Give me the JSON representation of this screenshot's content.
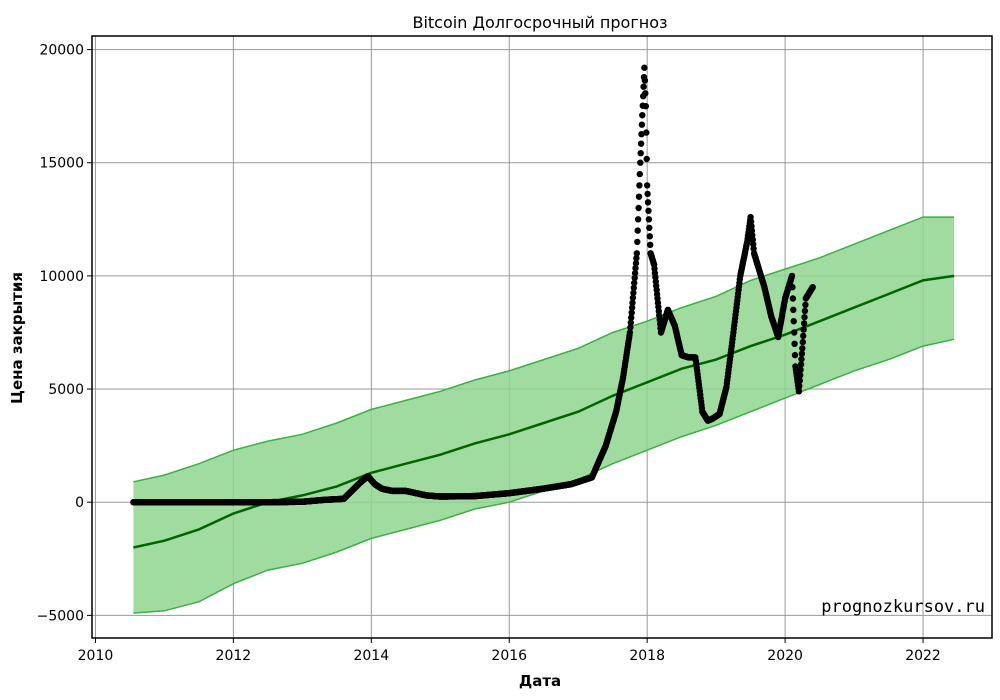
{
  "chart_data": {
    "type": "scatter",
    "title": "Bitcoin Долгосрочный прогноз",
    "xlabel": "Дата",
    "ylabel": "Цена закрытия",
    "xlim": [
      2009.95,
      2023.0
    ],
    "ylim": [
      -6000,
      20600
    ],
    "x_ticks": [
      2010,
      2012,
      2014,
      2016,
      2018,
      2020,
      2022
    ],
    "y_ticks": [
      -5000,
      0,
      5000,
      10000,
      15000,
      20000
    ],
    "x_tick_labels": [
      "2010",
      "2012",
      "2014",
      "2016",
      "2018",
      "2020",
      "2022"
    ],
    "y_tick_labels": [
      "−5000",
      "0",
      "5000",
      "10000",
      "15000",
      "20000"
    ],
    "grid": true,
    "colors": {
      "actual": "#000000",
      "forecast_line": "#006400",
      "uncertainty_fill": "#8fd68f",
      "uncertainty_edge": "#3cb043"
    },
    "series": [
      {
        "kind": "forecast",
        "x": [
          2010.55,
          2011.0,
          2011.5,
          2012.0,
          2012.5,
          2013.0,
          2013.5,
          2014.0,
          2014.5,
          2015.0,
          2015.5,
          2016.0,
          2016.5,
          2017.0,
          2017.5,
          2018.0,
          2018.5,
          2019.0,
          2019.5,
          2020.0,
          2020.5,
          2021.0,
          2021.5,
          2022.0,
          2022.45
        ],
        "y": [
          -2000,
          -1700,
          -1200,
          -500,
          0,
          300,
          700,
          1300,
          1700,
          2100,
          2600,
          3000,
          3500,
          4000,
          4700,
          5300,
          5900,
          6300,
          6900,
          7400,
          8000,
          8600,
          9200,
          9800,
          10000
        ],
        "lower": [
          -4900,
          -4800,
          -4400,
          -3600,
          -3000,
          -2700,
          -2200,
          -1600,
          -1200,
          -800,
          -300,
          0,
          500,
          1000,
          1700,
          2300,
          2900,
          3400,
          4000,
          4600,
          5200,
          5800,
          6300,
          6900,
          7200
        ],
        "upper": [
          900,
          1200,
          1700,
          2300,
          2700,
          3000,
          3500,
          4100,
          4500,
          4900,
          5400,
          5800,
          6300,
          6800,
          7500,
          8000,
          8600,
          9100,
          9800,
          10300,
          10800,
          11400,
          12000,
          12600,
          12600
        ]
      },
      {
        "kind": "actual",
        "x": [
          2010.55,
          2011.0,
          2011.5,
          2012.0,
          2012.5,
          2013.0,
          2013.3,
          2013.6,
          2013.85,
          2013.95,
          2014.05,
          2014.15,
          2014.3,
          2014.5,
          2014.8,
          2015.0,
          2015.5,
          2016.0,
          2016.5,
          2016.9,
          2017.2,
          2017.4,
          2017.55,
          2017.65,
          2017.75,
          2017.85,
          2017.9,
          2017.96,
          2017.98,
          2018.0,
          2018.05,
          2018.1,
          2018.15,
          2018.2,
          2018.3,
          2018.4,
          2018.5,
          2018.6,
          2018.7,
          2018.8,
          2018.88,
          2018.95,
          2019.05,
          2019.15,
          2019.25,
          2019.35,
          2019.45,
          2019.5,
          2019.55,
          2019.6,
          2019.7,
          2019.8,
          2019.9,
          2020.0,
          2020.1,
          2020.15,
          2020.2,
          2020.25,
          2020.3,
          2020.4
        ],
        "y": [
          0,
          0,
          0,
          0,
          0,
          20,
          100,
          150,
          900,
          1150,
          800,
          600,
          500,
          500,
          300,
          250,
          270,
          400,
          600,
          800,
          1100,
          2500,
          4000,
          5500,
          7500,
          11000,
          15000,
          19200,
          17500,
          14000,
          11000,
          10500,
          9000,
          7500,
          8500,
          7800,
          6500,
          6400,
          6400,
          4000,
          3600,
          3700,
          3900,
          5100,
          7500,
          10000,
          11500,
          12600,
          11000,
          10500,
          9500,
          8200,
          7300,
          9000,
          10000,
          6000,
          4900,
          6800,
          9000,
          9500
        ]
      }
    ],
    "annotations": [
      "prognozkursov.ru"
    ]
  }
}
